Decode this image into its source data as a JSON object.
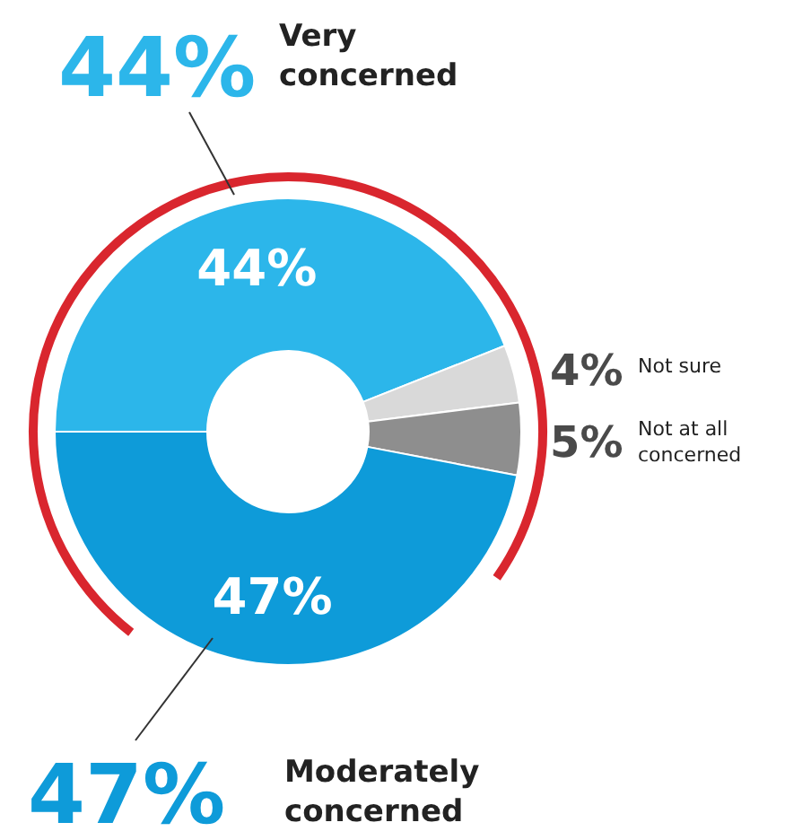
{
  "chart_data": {
    "type": "donut",
    "categories": [
      "Very concerned",
      "Not sure",
      "Not at all concerned",
      "Moderately concerned"
    ],
    "values": [
      44,
      4,
      5,
      47
    ],
    "colors": [
      "#2cb6ea",
      "#d9d9d9",
      "#8e8e8e",
      "#0e9bd9"
    ],
    "value_labels": [
      "44%",
      "4%",
      "5%",
      "47%"
    ],
    "annotations": [
      "44%",
      "47%"
    ]
  }
}
